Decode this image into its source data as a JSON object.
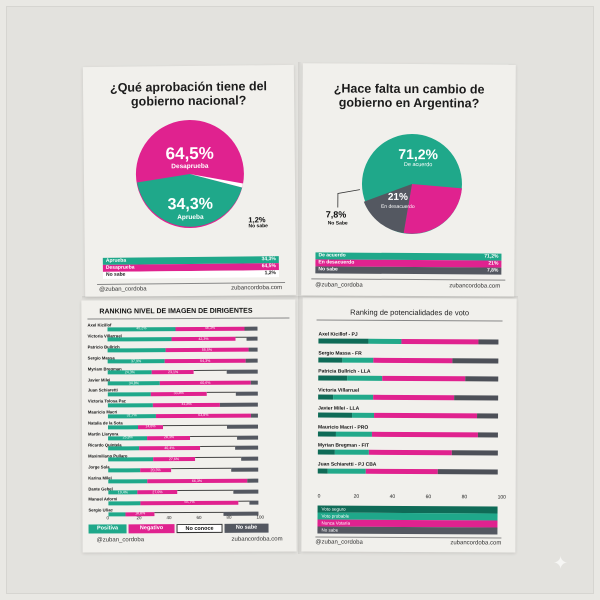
{
  "colors": {
    "green": "#1fa88a",
    "magenta": "#e0228f",
    "dark": "#545861",
    "paper": "#f1f0ec"
  },
  "top_left": {
    "title_line1": "¿Qué aprobación tiene del",
    "title_line2": "gobierno nacional?",
    "big_pct": "64,5%",
    "big_label": "Desaprueba",
    "mid_pct": "34,3%",
    "mid_label": "Aprueba",
    "small_pct": "1,2%",
    "small_label": "No sabe",
    "legend": [
      {
        "label": "Aprueba",
        "value": "34,3%"
      },
      {
        "label": "Desaprueba",
        "value": "64,5%"
      },
      {
        "label": "No sabe",
        "value": "1,2%"
      }
    ],
    "handle": "@zuban_cordoba",
    "site": "zubancordoba.com"
  },
  "top_right": {
    "title_line1": "¿Hace falta un cambio de",
    "title_line2": "gobierno en Argentina?",
    "big_pct": "71,2%",
    "big_label": "De acuerdo",
    "mid_pct": "21%",
    "mid_label": "En desacuerdo",
    "small_pct": "7,8%",
    "small_label": "No Sabe",
    "legend": [
      {
        "label": "De acuerdo",
        "value": "71,2%"
      },
      {
        "label": "En desacuerdo",
        "value": "21%"
      },
      {
        "label": "No sabe",
        "value": "7,8%"
      }
    ],
    "handle": "@zuban_cordoba",
    "site": "zubancordoba.com"
  },
  "bottom_left": {
    "title": "RANKING NIVEL DE IMAGEN DE DIRIGENTES",
    "rows": [
      {
        "name": "Axel Kicillof",
        "pos": 45.2,
        "neg": 46.3,
        "nc": 0,
        "ns": 8.5,
        "pos_label": "45,2%",
        "neg_label": "46,3%"
      },
      {
        "name": "Victoria Villarruel",
        "pos": 42.8,
        "neg": 42.3,
        "nc": 7.5,
        "ns": 7.4,
        "pos_label": "",
        "neg_label": "42,3%"
      },
      {
        "name": "Patricio Bullrich",
        "pos": 38.5,
        "neg": 55.5,
        "nc": 0,
        "ns": 6.0,
        "pos_label": "",
        "neg_label": "55,5%"
      },
      {
        "name": "Sergio Massa",
        "pos": 37.9,
        "neg": 54.3,
        "nc": 0,
        "ns": 7.8,
        "pos_label": "37,9%",
        "neg_label": "54,3%"
      },
      {
        "name": "Myriam Bregman",
        "pos": 24.3,
        "neg": 23.1,
        "nc": 18.1,
        "ns": 16.7,
        "pos_label": "24,3%",
        "neg_label": "23,1%"
      },
      {
        "name": "Javier Milei",
        "pos": 34.8,
        "neg": 60.6,
        "nc": 0,
        "ns": 4.6,
        "pos_label": "34,8%",
        "neg_label": "60,6%"
      },
      {
        "name": "Juan Schiaretti",
        "pos": 25.9,
        "neg": 33.8,
        "nc": 17.8,
        "ns": 13.1,
        "pos_label": "",
        "neg_label": "33,8%"
      },
      {
        "name": "Victoria Tolosa Paz",
        "pos": 28.0,
        "neg": 41.8,
        "nc": 0,
        "ns": 23.4,
        "pos_label": "",
        "neg_label": "41,8%"
      },
      {
        "name": "Mauricio Macri",
        "pos": 31.7,
        "neg": 63.8,
        "nc": 0,
        "ns": 4.5,
        "pos_label": "31,7%",
        "neg_label": "63,8%"
      },
      {
        "name": "Natalia de la Sota",
        "pos": 17.5,
        "neg": 14.8,
        "nc": 37.6,
        "ns": 17.9,
        "pos_label": "",
        "neg_label": "14,8%"
      },
      {
        "name": "Martín Llaryora",
        "pos": 25.8,
        "neg": 28.3,
        "nc": 30.6,
        "ns": 13.7,
        "pos_label": "25,8%",
        "neg_label": "28,3%"
      },
      {
        "name": "Ricardo Quintela",
        "pos": 20.6,
        "neg": 40.4,
        "nc": 23.3,
        "ns": 15.6,
        "pos_label": "",
        "neg_label": "40,4%"
      },
      {
        "name": "Maximiliano Pullaro",
        "pos": 30.1,
        "neg": 27.6,
        "nc": 30.7,
        "ns": 11.6,
        "pos_label": "",
        "neg_label": "27,6%"
      },
      {
        "name": "Jorge Sola",
        "pos": 20.8,
        "neg": 20.3,
        "nc": 38.9,
        "ns": 17.9,
        "pos_label": "",
        "neg_label": "20,3%"
      },
      {
        "name": "Karina Milei",
        "pos": 25.7,
        "neg": 66.3,
        "nc": 0,
        "ns": 7.5,
        "pos_label": "",
        "neg_label": "66,3%"
      },
      {
        "name": "Dante Gebel",
        "pos": 19.4,
        "neg": 27.0,
        "nc": 37.2,
        "ns": 16.8,
        "pos_label": "19,4%",
        "neg_label": "27,0%"
      },
      {
        "name": "Manuel Adorni",
        "pos": 21.3,
        "neg": 65.7,
        "nc": 6.9,
        "ns": 6.1,
        "pos_label": "",
        "neg_label": "65,7%"
      },
      {
        "name": "Sergio Uñac",
        "pos": 10.8,
        "neg": 18.8,
        "nc": 43.6,
        "ns": 22.3,
        "pos_label": "",
        "neg_label": "18,8%"
      }
    ],
    "axis": [
      "0",
      "20",
      "40",
      "60",
      "80",
      "100"
    ],
    "legend": [
      "Positiva",
      "Negativo",
      "No conoce",
      "No sabe"
    ],
    "handle": "@zuban_cordoba",
    "site": "zubancordoba.com"
  },
  "bottom_right": {
    "title": "Ranking de potencialidades de voto",
    "rows": [
      {
        "name": "Axel Kicillof - PJ",
        "v": [
          27.8,
          18.5,
          42.8,
          10.9
        ]
      },
      {
        "name": "Sergio Massa - FR",
        "v": [
          13.2,
          17.4,
          44.1,
          25.3
        ]
      },
      {
        "name": "Patricia Bullrich - LLA",
        "v": [
          16.2,
          19.3,
          46.4,
          18.1
        ]
      },
      {
        "name": "Victoria Villarruel",
        "v": [
          8.3,
          22.2,
          44.9,
          24.6
        ]
      },
      {
        "name": "Javier Milei - LLA",
        "v": [
          18.7,
          12.2,
          57.2,
          11.9
        ]
      },
      {
        "name": "Mauricio Macri - PRO",
        "v": [
          9.9,
          20.1,
          58.8,
          11.2
        ]
      },
      {
        "name": "Myrian Bregman - FIT",
        "v": [
          9.4,
          19.1,
          46.0,
          25.5
        ]
      },
      {
        "name": "Juan Schiaretti - PJ CBA",
        "v": [
          5.6,
          20.8,
          40.1,
          33.5
        ]
      }
    ],
    "axis": [
      "0",
      "20",
      "40",
      "60",
      "80",
      "100"
    ],
    "legend": [
      "Voto seguro",
      "Voto probable",
      "Nunca Votaría",
      "No sabe"
    ],
    "handle": "@zuban_cordoba",
    "site": "zubancordoba.com"
  }
}
